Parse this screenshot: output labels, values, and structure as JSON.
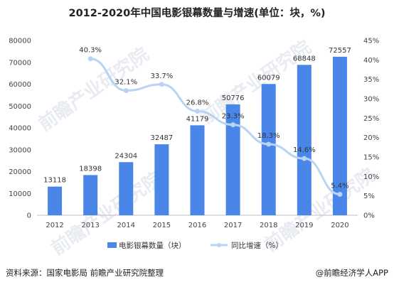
{
  "title": "2012-2020年中国电影银幕数量与增速(单位：块，%)",
  "footer": {
    "source": "资料来源：国家电影局 前瞻产业研究院整理",
    "brand": "@前瞻经济学人APP"
  },
  "watermark": {
    "text": "前瞻产业研究院"
  },
  "colors": {
    "bar": "#4a86e8",
    "line": "#b9d3f2",
    "marker": "#b9d3f2",
    "axis": "#bfbfbf"
  },
  "chart_data": {
    "type": "bar",
    "categories": [
      "2012",
      "2013",
      "2014",
      "2015",
      "2016",
      "2017",
      "2018",
      "2019",
      "2020"
    ],
    "series": [
      {
        "name": "电影银幕数量（块）",
        "type": "bar",
        "axis": "left",
        "values": [
          13118,
          18398,
          24304,
          32487,
          41179,
          50776,
          60079,
          68848,
          72557
        ],
        "labels": [
          "13118",
          "18398",
          "24304",
          "32487",
          "41179",
          "50776",
          "60079",
          "68848",
          "72557"
        ]
      },
      {
        "name": "同比增速（%）",
        "type": "line",
        "axis": "right",
        "values": [
          null,
          40.3,
          32.1,
          33.7,
          26.8,
          23.3,
          18.3,
          14.6,
          5.4
        ],
        "labels": [
          "",
          "40.3%",
          "32.1%",
          "33.7%",
          "26.8%",
          "23.3%",
          "18.3%",
          "14.6%",
          "5.4%"
        ]
      }
    ],
    "y_left": {
      "ylim": [
        0,
        80000
      ],
      "ticks": [
        0,
        10000,
        20000,
        30000,
        40000,
        50000,
        60000,
        70000,
        80000
      ],
      "tick_labels": [
        "0",
        "10000",
        "20000",
        "30000",
        "40000",
        "50000",
        "60000",
        "70000",
        "80000"
      ]
    },
    "y_right": {
      "ylim": [
        0,
        45
      ],
      "ticks": [
        0,
        5,
        10,
        15,
        20,
        25,
        30,
        35,
        40,
        45
      ],
      "tick_labels": [
        "0%",
        "5%",
        "10%",
        "15%",
        "20%",
        "25%",
        "30%",
        "35%",
        "40%",
        "45%"
      ]
    },
    "grid": false,
    "legend": "bottom-center"
  }
}
